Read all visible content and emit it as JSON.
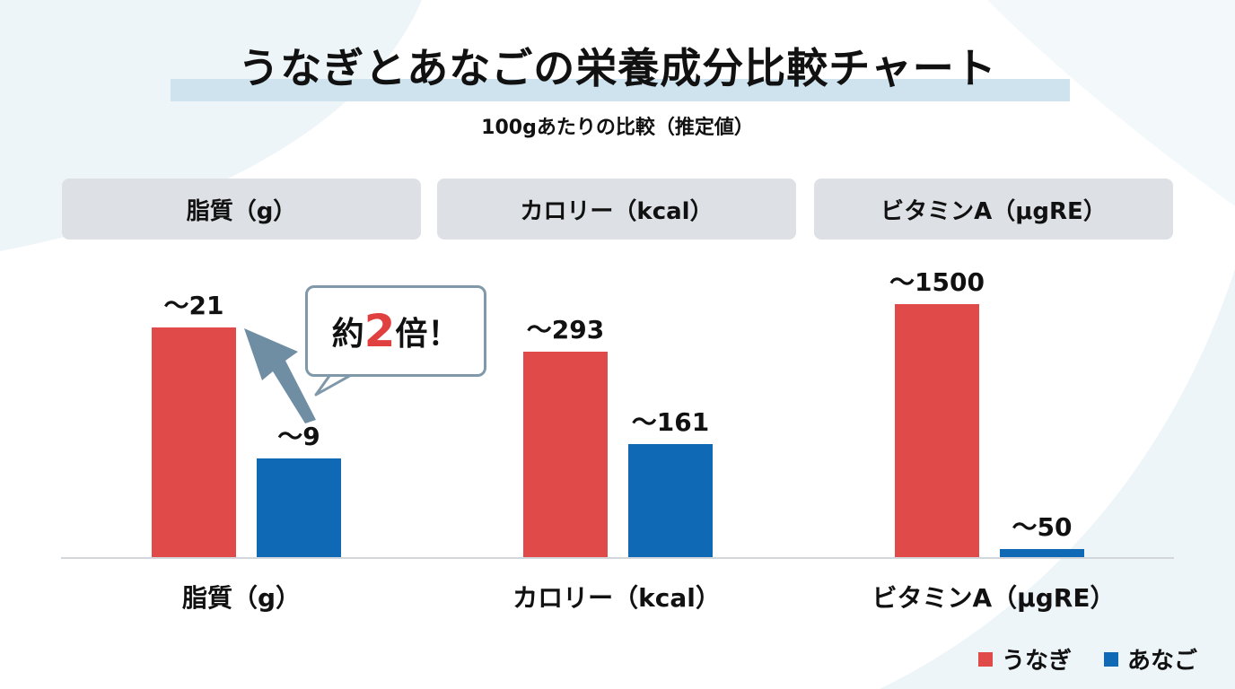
{
  "title": "うなぎとあなごの栄養成分比較チャート",
  "subtitle": "100gあたりの比較（推定値）",
  "colors": {
    "unagi": "#e04b4a",
    "anago": "#0f69b4",
    "accent_band": "#cfe3ef",
    "arrow": "#6f8ea3"
  },
  "callout": {
    "pre": "約",
    "num": "2",
    "post": "倍！"
  },
  "chart_data": [
    {
      "type": "bar",
      "title": "脂質（g）",
      "categories": [
        "脂質（g）"
      ],
      "series": [
        {
          "name": "うなぎ",
          "values": [
            21
          ],
          "labels": [
            "〜21"
          ]
        },
        {
          "name": "あなご",
          "values": [
            9
          ],
          "labels": [
            "〜9"
          ]
        }
      ],
      "ylim": [
        0,
        24.6
      ],
      "grid": false
    },
    {
      "type": "bar",
      "title": "カロリー（kcal）",
      "categories": [
        "カロリー（kcal）"
      ],
      "series": [
        {
          "name": "うなぎ",
          "values": [
            293
          ],
          "labels": [
            "〜293"
          ]
        },
        {
          "name": "あなご",
          "values": [
            161
          ],
          "labels": [
            "〜161"
          ]
        }
      ],
      "ylim": [
        0,
        384
      ],
      "grid": false
    },
    {
      "type": "bar",
      "title": "ビタミンA（μgRE）",
      "categories": [
        "ビタミンA（μgRE）"
      ],
      "series": [
        {
          "name": "うなぎ",
          "values": [
            1500
          ],
          "labels": [
            "〜1500"
          ]
        },
        {
          "name": "あなご",
          "values": [
            50
          ],
          "labels": [
            "〜50"
          ]
        }
      ],
      "ylim": [
        0,
        1596
      ],
      "grid": false
    }
  ],
  "legend": {
    "position": "bottom-right",
    "items": [
      "うなぎ",
      "あなご"
    ]
  }
}
